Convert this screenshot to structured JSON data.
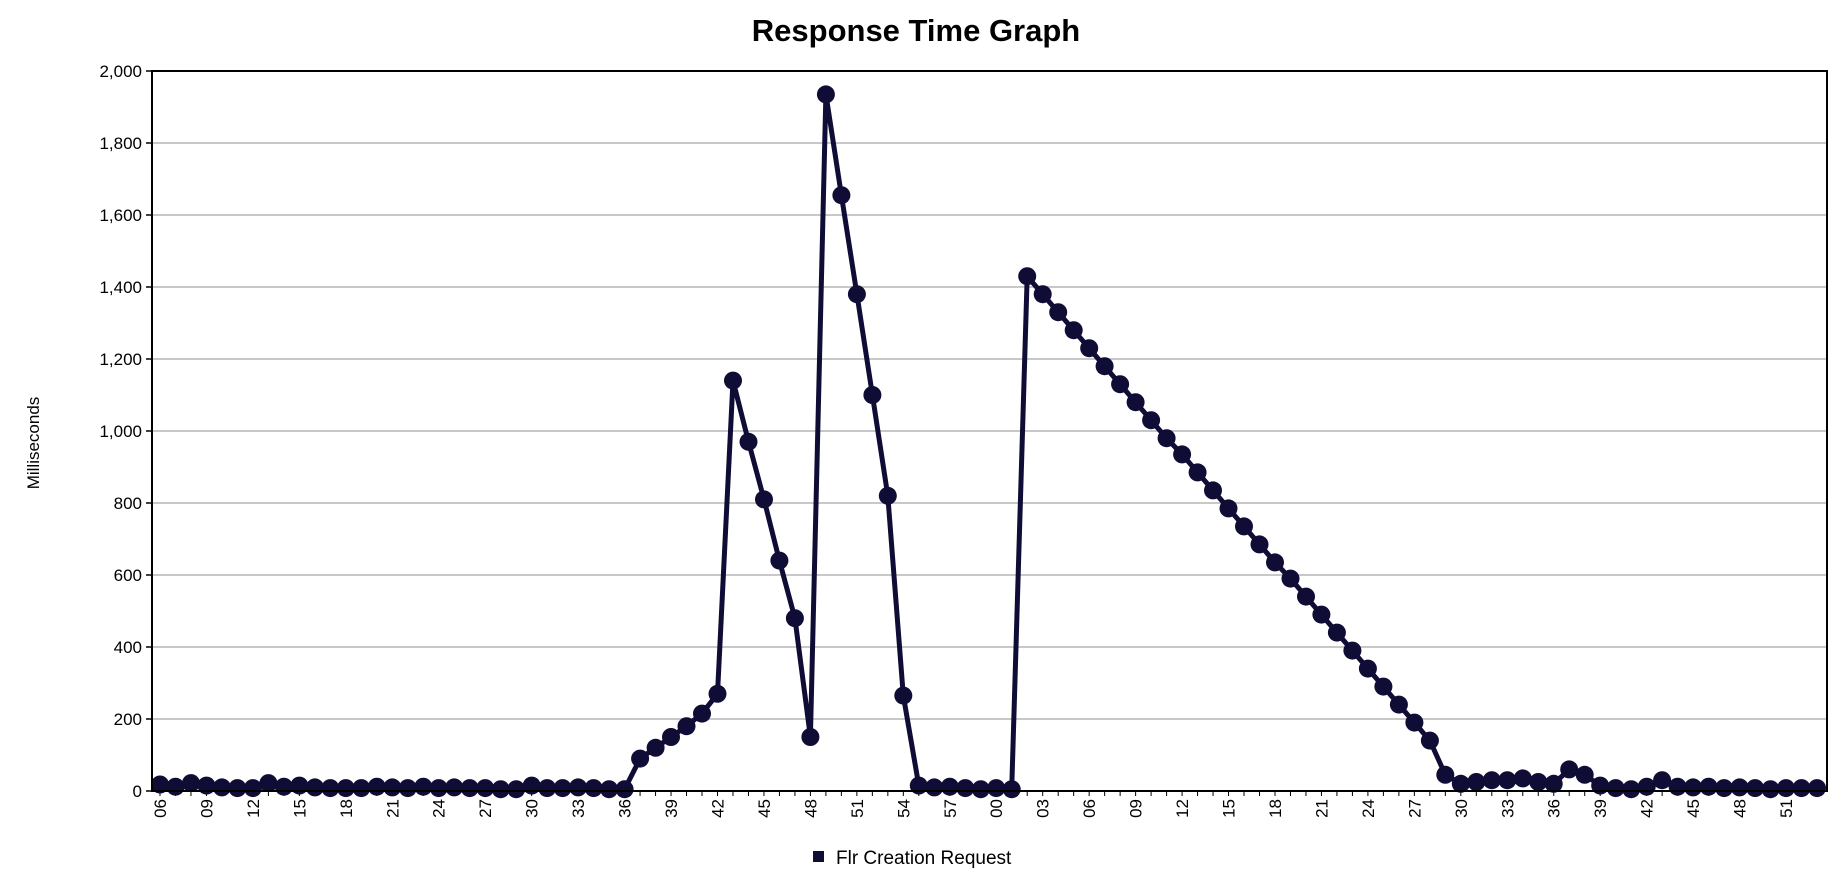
{
  "chart_data": {
    "type": "line",
    "title": "Response Time Graph",
    "xlabel": "",
    "ylabel": "Milliseconds",
    "ylim": [
      0,
      2000
    ],
    "yticks": [
      0,
      200,
      400,
      600,
      800,
      1000,
      1200,
      1400,
      1600,
      1800,
      2000
    ],
    "ytick_labels": [
      "0",
      "200",
      "400",
      "600",
      "800",
      "1,000",
      "1,200",
      "1,400",
      "1,600",
      "1,800",
      "2,000"
    ],
    "grid": true,
    "legend_position": "bottom-center",
    "x": [
      "06",
      "07",
      "08",
      "09",
      "10",
      "11",
      "12",
      "13",
      "14",
      "15",
      "16",
      "17",
      "18",
      "19",
      "20",
      "21",
      "22",
      "23",
      "24",
      "25",
      "26",
      "27",
      "28",
      "29",
      "30",
      "31",
      "32",
      "33",
      "34",
      "35",
      "36",
      "37",
      "38",
      "39",
      "40",
      "41",
      "42",
      "43",
      "44",
      "45",
      "46",
      "47",
      "48",
      "49",
      "50",
      "51",
      "52",
      "53",
      "54",
      "55",
      "56",
      "57",
      "58",
      "59",
      "00",
      "01",
      "02",
      "03",
      "04",
      "05",
      "06",
      "07",
      "08",
      "09",
      "10",
      "11",
      "12",
      "13",
      "14",
      "15",
      "16",
      "17",
      "18",
      "19",
      "20",
      "21",
      "22",
      "23",
      "24",
      "25",
      "26",
      "27",
      "28",
      "29",
      "30",
      "31",
      "32",
      "33",
      "34",
      "35",
      "36",
      "37",
      "38",
      "39",
      "40",
      "41",
      "42",
      "43",
      "44",
      "45",
      "46",
      "47",
      "48",
      "49",
      "50",
      "51",
      "52",
      "53"
    ],
    "x_tick_labels_shown": [
      "06",
      "09",
      "12",
      "15",
      "18",
      "21",
      "24",
      "27",
      "30",
      "33",
      "36",
      "39",
      "42",
      "45",
      "48",
      "51",
      "54",
      "57",
      "00",
      "03",
      "06",
      "09",
      "12",
      "15",
      "18",
      "21",
      "24",
      "27",
      "30",
      "33",
      "36",
      "39",
      "42",
      "45",
      "48",
      "51"
    ],
    "series": [
      {
        "name": "Flr Creation Request",
        "color": "#0f0c35",
        "values": [
          18,
          12,
          22,
          15,
          10,
          8,
          8,
          22,
          12,
          15,
          10,
          8,
          8,
          8,
          12,
          10,
          8,
          12,
          8,
          10,
          8,
          8,
          5,
          5,
          15,
          8,
          8,
          10,
          8,
          5,
          5,
          90,
          120,
          150,
          180,
          215,
          270,
          1140,
          970,
          810,
          640,
          480,
          150,
          1935,
          1655,
          1380,
          1100,
          820,
          265,
          15,
          10,
          12,
          8,
          5,
          8,
          5,
          1430,
          1380,
          1330,
          1280,
          1230,
          1180,
          1130,
          1080,
          1030,
          980,
          935,
          885,
          835,
          785,
          735,
          685,
          635,
          590,
          540,
          490,
          440,
          390,
          340,
          290,
          240,
          190,
          140,
          45,
          20,
          25,
          30,
          30,
          35,
          25,
          20,
          60,
          45,
          15,
          8,
          5,
          12,
          30,
          12,
          10,
          12,
          8,
          10,
          8,
          5,
          8,
          8,
          8
        ]
      }
    ]
  },
  "legend": {
    "label": "Flr Creation Request",
    "icon": "square-marker-icon"
  }
}
